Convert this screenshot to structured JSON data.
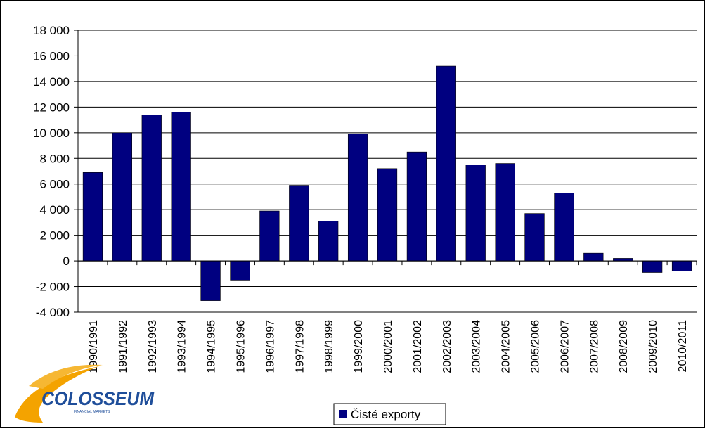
{
  "chart_data": {
    "type": "bar",
    "categories": [
      "1990/1991",
      "1991/1992",
      "1992/1993",
      "1993/1994",
      "1994/1995",
      "1995/1996",
      "1996/1997",
      "1997/1998",
      "1998/1999",
      "1999/2000",
      "2000/2001",
      "2001/2002",
      "2002/2003",
      "2003/2004",
      "2004/2005",
      "2005/2006",
      "2006/2007",
      "2007/2008",
      "2008/2009",
      "2009/2010",
      "2010/2011"
    ],
    "series": [
      {
        "name": "Čisté exporty",
        "values": [
          6900,
          10000,
          11400,
          11600,
          -3100,
          -1500,
          3900,
          5900,
          3100,
          9900,
          7200,
          8500,
          15200,
          7500,
          7600,
          3700,
          5300,
          600,
          200,
          -900,
          -800
        ]
      }
    ],
    "ylim": [
      -4000,
      18000
    ],
    "yticks": [
      18000,
      16000,
      14000,
      12000,
      10000,
      8000,
      6000,
      4000,
      2000,
      0,
      -2000,
      -4000
    ],
    "ytick_labels": [
      "18 000",
      "16 000",
      "14 000",
      "12 000",
      "10 000",
      "8 000",
      "6 000",
      "4 000",
      "2 000",
      "0",
      "-2 000",
      "-4 000"
    ],
    "grid": true,
    "legend_position": "bottom",
    "bar_color": "#000080"
  },
  "logo": {
    "name": "COLOSSEUM",
    "tagline": "FINANCIAL MARKETS"
  }
}
